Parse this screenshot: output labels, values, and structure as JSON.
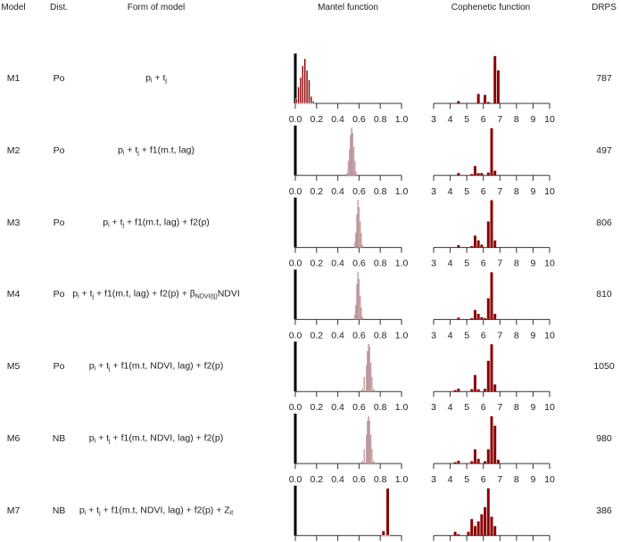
{
  "headers": {
    "model": "Model",
    "dist": "Dist.",
    "form": "Form of model",
    "mantel": "Mantel function",
    "cophenetic": "Cophenetic function",
    "drps": "DRPS"
  },
  "rows": [
    {
      "model": "M1",
      "dist": "Po",
      "drps": "787",
      "formula": [
        {
          "t": "p"
        },
        {
          "s": "i"
        },
        {
          "t": " + t"
        },
        {
          "s": "j"
        }
      ]
    },
    {
      "model": "M2",
      "dist": "Po",
      "drps": "497",
      "formula": [
        {
          "t": "p"
        },
        {
          "s": "i"
        },
        {
          "t": " + t"
        },
        {
          "s": "j"
        },
        {
          "t": " + f1(m.t, lag)"
        }
      ]
    },
    {
      "model": "M3",
      "dist": "Po",
      "drps": "806",
      "formula": [
        {
          "t": "p"
        },
        {
          "s": "i"
        },
        {
          "t": " + t"
        },
        {
          "s": "j"
        },
        {
          "t": " + f1(m.t, lag) + f2(p)"
        }
      ]
    },
    {
      "model": "M4",
      "dist": "Po",
      "drps": "810",
      "formula": [
        {
          "t": "p"
        },
        {
          "s": "i"
        },
        {
          "t": " + t"
        },
        {
          "s": "j"
        },
        {
          "t": " + f1(m.t, lag) + f2(p) + β"
        },
        {
          "s": "NDVI(tj)"
        },
        {
          "t": "NDVI"
        }
      ]
    },
    {
      "model": "M5",
      "dist": "Po",
      "drps": "1050",
      "formula": [
        {
          "t": "p"
        },
        {
          "s": "i"
        },
        {
          "t": " + t"
        },
        {
          "s": "j"
        },
        {
          "t": " + f1(m.t, NDVI, lag) + f2(p)"
        }
      ]
    },
    {
      "model": "M6",
      "dist": "NB",
      "drps": "980",
      "formula": [
        {
          "t": "p"
        },
        {
          "s": "i"
        },
        {
          "t": " + t"
        },
        {
          "s": "j"
        },
        {
          "t": " + f1(m.t, NDVI, lag) + f2(p)"
        }
      ]
    },
    {
      "model": "M7",
      "dist": "NB",
      "drps": "386",
      "formula": [
        {
          "t": "p"
        },
        {
          "s": "i"
        },
        {
          "t": " + t"
        },
        {
          "s": "j"
        },
        {
          "t": " + f1(m.t, NDVI, lag) + f2(p) + Z"
        },
        {
          "s": "it"
        }
      ]
    }
  ],
  "chart_data": [
    {
      "type": "bar",
      "title": "Mantel function",
      "xlim": [
        0,
        1
      ],
      "xticks": [
        "0.0",
        "0.2",
        "0.4",
        "0.6",
        "0.8",
        "1.0"
      ],
      "note": "histograms per model; heights relative to max",
      "colors": {
        "dark": "#8b0000",
        "light": "#cdb5b7"
      },
      "series": [
        {
          "model": "M1",
          "style": "dark",
          "x": [
            0.01,
            0.03,
            0.05,
            0.07,
            0.09,
            0.11,
            0.13,
            0.15,
            0.17
          ],
          "values": [
            0.1,
            0.35,
            0.55,
            0.8,
            0.95,
            0.7,
            0.5,
            0.15,
            0.05
          ]
        },
        {
          "model": "M2",
          "style": "light",
          "x": [
            0.49,
            0.5,
            0.51,
            0.52,
            0.53,
            0.54,
            0.55,
            0.56,
            0.57
          ],
          "values": [
            0.05,
            0.3,
            0.55,
            0.85,
            1.0,
            0.9,
            0.6,
            0.3,
            0.08
          ]
        },
        {
          "model": "M3",
          "style": "light",
          "x": [
            0.56,
            0.57,
            0.58,
            0.59,
            0.6,
            0.61,
            0.62,
            0.63
          ],
          "values": [
            0.1,
            0.3,
            0.7,
            1.0,
            0.85,
            0.55,
            0.3,
            0.05
          ]
        },
        {
          "model": "M4",
          "style": "light",
          "x": [
            0.56,
            0.57,
            0.58,
            0.59,
            0.6,
            0.61,
            0.62,
            0.63
          ],
          "values": [
            0.1,
            0.3,
            0.75,
            1.0,
            0.85,
            0.5,
            0.25,
            0.05
          ]
        },
        {
          "model": "M5",
          "style": "light",
          "x": [
            0.63,
            0.65,
            0.67,
            0.68,
            0.69,
            0.7,
            0.71,
            0.72,
            0.74
          ],
          "values": [
            0.05,
            0.3,
            0.55,
            0.85,
            1.0,
            0.95,
            0.6,
            0.3,
            0.05
          ]
        },
        {
          "model": "M6",
          "style": "light",
          "x": [
            0.63,
            0.65,
            0.67,
            0.68,
            0.69,
            0.7,
            0.71,
            0.72,
            0.74
          ],
          "values": [
            0.05,
            0.3,
            0.6,
            0.9,
            1.0,
            0.9,
            0.6,
            0.3,
            0.05
          ]
        },
        {
          "model": "M7",
          "style": "dark",
          "x": [
            0.83,
            0.87
          ],
          "values": [
            0.1,
            1.0
          ]
        }
      ]
    },
    {
      "type": "bar",
      "title": "Cophenetic function",
      "xlim": [
        3,
        10
      ],
      "xticks": [
        "3",
        "4",
        "5",
        "6",
        "7",
        "8",
        "9",
        "10"
      ],
      "colors": {
        "dark": "#8b0000"
      },
      "series": [
        {
          "model": "M1",
          "x": [
            4.5,
            5.7,
            6.1,
            6.3,
            6.7,
            6.9
          ],
          "values": [
            0.05,
            0.2,
            0.18,
            0.02,
            1.0,
            0.7
          ]
        },
        {
          "model": "M2",
          "x": [
            4.5,
            5.3,
            5.5,
            5.7,
            5.9,
            6.3,
            6.5,
            6.7
          ],
          "values": [
            0.05,
            0.03,
            0.2,
            0.05,
            0.05,
            0.06,
            1.0,
            0.1
          ]
        },
        {
          "model": "M3",
          "x": [
            4.5,
            5.3,
            5.5,
            5.7,
            5.9,
            6.3,
            6.5,
            6.7
          ],
          "values": [
            0.05,
            0.02,
            0.25,
            0.15,
            0.06,
            0.55,
            1.0,
            0.15
          ]
        },
        {
          "model": "M4",
          "x": [
            4.5,
            5.3,
            5.5,
            5.7,
            5.9,
            6.1,
            6.3,
            6.5,
            6.7
          ],
          "values": [
            0.04,
            0.02,
            0.2,
            0.12,
            0.05,
            0.02,
            0.45,
            1.0,
            0.12
          ]
        },
        {
          "model": "M5",
          "x": [
            4.3,
            4.5,
            5.3,
            5.5,
            5.7,
            6.1,
            6.3,
            6.5,
            6.7
          ],
          "values": [
            0.03,
            0.06,
            0.05,
            0.35,
            0.05,
            0.06,
            0.65,
            1.0,
            0.15
          ]
        },
        {
          "model": "M6",
          "x": [
            4.3,
            4.5,
            5.3,
            5.5,
            5.7,
            6.1,
            6.3,
            6.5,
            6.7,
            6.9
          ],
          "values": [
            0.02,
            0.06,
            0.05,
            0.3,
            0.1,
            0.05,
            0.3,
            1.0,
            0.8,
            0.08
          ]
        },
        {
          "model": "M7",
          "x": [
            4.3,
            4.5,
            5.1,
            5.3,
            5.5,
            5.7,
            5.9,
            6.1,
            6.3,
            6.5,
            6.7
          ],
          "values": [
            0.08,
            0.02,
            0.08,
            0.35,
            0.2,
            0.3,
            0.45,
            0.6,
            1.0,
            0.4,
            0.2
          ]
        }
      ]
    }
  ]
}
